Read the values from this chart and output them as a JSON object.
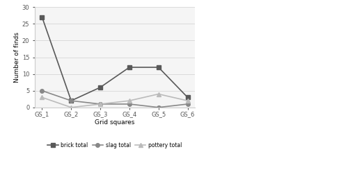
{
  "categories": [
    "GS_1",
    "GS_2",
    "GS_3",
    "GS_4",
    "GS_5",
    "GS_6"
  ],
  "brick_total": [
    27,
    2,
    6,
    12,
    12,
    3
  ],
  "slag_total": [
    5,
    2,
    1,
    1,
    0,
    1
  ],
  "pottery_total": [
    3,
    0,
    1,
    2,
    4,
    2
  ],
  "brick_color": "#595959",
  "slag_color": "#888888",
  "pottery_color": "#bbbbbb",
  "brick_marker": "s",
  "slag_marker": "o",
  "pottery_marker": "^",
  "xlabel": "Grid squares",
  "ylabel": "Number of finds",
  "ylim": [
    0,
    30
  ],
  "yticks": [
    0,
    5,
    10,
    15,
    20,
    25,
    30
  ],
  "legend_labels": [
    "brick total",
    "slag total",
    "pottery total"
  ],
  "linewidth": 1.2,
  "markersize": 4,
  "bg_color": "#f5f5f5",
  "grid_color": "#d0d0d0"
}
